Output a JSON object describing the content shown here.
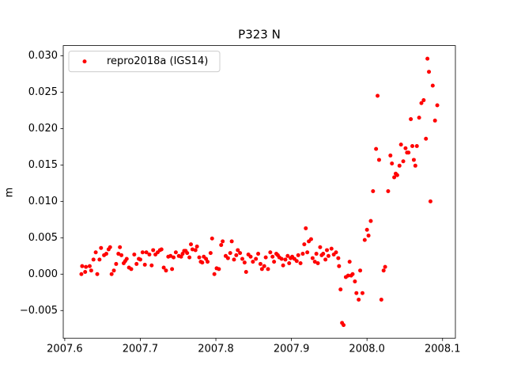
{
  "chart_data": {
    "type": "scatter",
    "title": "P323 N",
    "y_label": "m",
    "legend_position": "upper left",
    "xlim": [
      2007.598,
      2008.117
    ],
    "ylim": [
      -0.0088,
      0.0314
    ],
    "xticks": [
      2007.6,
      2007.7,
      2007.8,
      2007.9,
      {
        "value": 2008.0,
        "label": "2008.0"
      },
      2008.1
    ],
    "yticks": [
      {
        "value": -0.005,
        "label": "−0.005"
      },
      {
        "value": 0,
        "label": "0.000"
      },
      0.005,
      {
        "value": 0.01,
        "label": "0.010"
      },
      0.015,
      {
        "value": 0.02,
        "label": "0.020"
      },
      0.025,
      {
        "value": 0.03,
        "label": "0.030"
      }
    ],
    "series": [
      {
        "name": "repro2018a (IGS14)",
        "color": "#ff0000",
        "x": [
          2007.622,
          2007.623,
          2007.627,
          2007.628,
          2007.633,
          2007.635,
          2007.638,
          2007.641,
          2007.643,
          2007.646,
          2007.648,
          2007.652,
          2007.655,
          2007.658,
          2007.66,
          2007.662,
          2007.665,
          2007.668,
          2007.671,
          2007.673,
          2007.675,
          2007.678,
          2007.68,
          2007.682,
          2007.685,
          2007.688,
          2007.692,
          2007.695,
          2007.698,
          2007.7,
          2007.703,
          2007.706,
          2007.708,
          2007.712,
          2007.715,
          2007.717,
          2007.72,
          2007.723,
          2007.726,
          2007.728,
          2007.731,
          2007.734,
          2007.737,
          2007.74,
          2007.742,
          2007.744,
          2007.747,
          2007.751,
          2007.754,
          2007.756,
          2007.758,
          2007.76,
          2007.762,
          2007.765,
          2007.767,
          2007.769,
          2007.773,
          2007.775,
          2007.778,
          2007.78,
          2007.782,
          2007.784,
          2007.787,
          2007.789,
          2007.793,
          2007.795,
          2007.798,
          2007.801,
          2007.804,
          2007.807,
          2007.809,
          2007.813,
          2007.816,
          2007.819,
          2007.821,
          2007.824,
          2007.827,
          2007.829,
          2007.832,
          2007.835,
          2007.838,
          2007.84,
          2007.843,
          2007.846,
          2007.849,
          2007.853,
          2007.856,
          2007.859,
          2007.861,
          2007.864,
          2007.866,
          2007.869,
          2007.872,
          2007.875,
          2007.877,
          2007.88,
          2007.882,
          2007.884,
          2007.887,
          2007.889,
          2007.892,
          2007.895,
          2007.897,
          2007.899,
          2007.901,
          2007.904,
          2007.907,
          2007.909,
          2007.912,
          2007.915,
          2007.917,
          2007.919,
          2007.921,
          2007.923,
          2007.926,
          2007.928,
          2007.931,
          2007.933,
          2007.935,
          2007.938,
          2007.94,
          2007.942,
          2007.945,
          2007.947,
          2007.949,
          2007.953,
          2007.956,
          2007.959,
          2007.962,
          2007.963,
          2007.965,
          2007.967,
          2007.969,
          2007.972,
          2007.975,
          2007.977,
          2007.979,
          2007.981,
          2007.984,
          2007.986,
          2007.989,
          2007.991,
          2007.994,
          2007.997,
          2008.0,
          2008.002,
          2008.005,
          2008.008,
          2008.012,
          2008.014,
          2008.016,
          2008.019,
          2008.022,
          2008.024,
          2008.028,
          2008.031,
          2008.033,
          2008.036,
          2008.038,
          2008.04,
          2008.043,
          2008.045,
          2008.048,
          2008.051,
          2008.053,
          2008.055,
          2008.058,
          2008.06,
          2008.062,
          2008.064,
          2008.066,
          2008.069,
          2008.072,
          2008.075,
          2008.078,
          2008.08,
          2008.082,
          2008.084,
          2008.087,
          2008.09,
          2008.093
        ],
        "values": [
          0.0,
          0.0011,
          0.0003,
          0.001,
          0.0011,
          0.0005,
          0.002,
          0.003,
          0.0,
          0.002,
          0.0036,
          0.0026,
          0.0028,
          0.0034,
          0.0037,
          0.0,
          0.0005,
          0.0014,
          0.0028,
          0.0037,
          0.0026,
          0.0015,
          0.0018,
          0.0021,
          0.0009,
          0.0007,
          0.0027,
          0.0014,
          0.0021,
          0.002,
          0.003,
          0.0013,
          0.003,
          0.0027,
          0.0012,
          0.0033,
          0.0027,
          0.003,
          0.0033,
          0.0034,
          0.0009,
          0.0005,
          0.0024,
          0.0025,
          0.0007,
          0.0023,
          0.003,
          0.0025,
          0.0024,
          0.0028,
          0.0032,
          0.0032,
          0.0029,
          0.0023,
          0.0041,
          0.0034,
          0.0033,
          0.0038,
          0.0023,
          0.0017,
          0.0016,
          0.0024,
          0.0021,
          0.0017,
          0.0029,
          0.0049,
          0.0,
          0.0008,
          0.0007,
          0.004,
          0.0045,
          0.0025,
          0.0022,
          0.0029,
          0.0045,
          0.002,
          0.0026,
          0.0033,
          0.0029,
          0.0021,
          0.0016,
          0.0003,
          0.0027,
          0.0024,
          0.0017,
          0.0021,
          0.0028,
          0.0014,
          0.0007,
          0.0011,
          0.0023,
          0.0007,
          0.003,
          0.0024,
          0.0017,
          0.0028,
          0.0026,
          0.0023,
          0.0021,
          0.0012,
          0.002,
          0.0025,
          0.0015,
          0.0022,
          0.0024,
          0.0021,
          0.0018,
          0.0026,
          0.0015,
          0.0028,
          0.0041,
          0.0063,
          0.003,
          0.0045,
          0.0048,
          0.0022,
          0.0017,
          0.0028,
          0.0015,
          0.0037,
          0.0026,
          0.0028,
          0.002,
          0.0033,
          0.0025,
          0.0035,
          0.0027,
          0.003,
          0.0022,
          0.0011,
          -0.0021,
          -0.0067,
          -0.007,
          -0.0004,
          -0.0002,
          0.0017,
          -0.0002,
          0.0,
          -0.001,
          -0.0026,
          -0.0035,
          0.0005,
          -0.0026,
          0.0047,
          0.0061,
          0.0053,
          0.0073,
          0.0114,
          0.0172,
          0.0245,
          0.0157,
          -0.0035,
          0.0005,
          0.001,
          0.0114,
          0.0163,
          0.0152,
          0.0133,
          0.0138,
          0.0136,
          0.0149,
          0.0178,
          0.0155,
          0.0173,
          0.0167,
          0.0167,
          0.0213,
          0.0176,
          0.0157,
          0.0149,
          0.0176,
          0.0215,
          0.0235,
          0.0239,
          0.0186,
          0.0296,
          0.0278,
          0.01,
          0.0259,
          0.0211,
          0.0232
        ]
      }
    ]
  }
}
